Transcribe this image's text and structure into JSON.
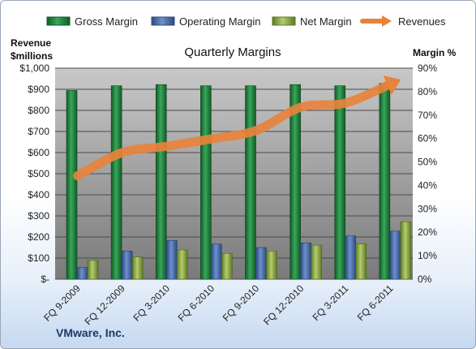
{
  "chart_data": {
    "type": "bar+line",
    "title": "Quarterly Margins",
    "company": "VMware, Inc.",
    "categories": [
      "FQ 9-2009",
      "FQ 12-2009",
      "FQ 3-2010",
      "FQ 6-2010",
      "FQ 9-2010",
      "FQ 12-2010",
      "FQ 3-2011",
      "FQ 6-2011"
    ],
    "left_axis": {
      "title_line1": "Revenue",
      "title_line2": "$millions",
      "range": [
        0,
        1000
      ],
      "ticks": [
        "$-",
        "$100",
        "$200",
        "$300",
        "$400",
        "$500",
        "$600",
        "$700",
        "$800",
        "$900",
        "$1,000"
      ]
    },
    "right_axis": {
      "title": "Margin %",
      "range": [
        0,
        90
      ],
      "ticks": [
        "0%",
        "10%",
        "20%",
        "30%",
        "40%",
        "50%",
        "60%",
        "70%",
        "80%",
        "90%"
      ]
    },
    "series": [
      {
        "name": "Gross Margin",
        "axis": "right",
        "color": "#1e7a3c",
        "values": [
          80.5,
          82.5,
          83,
          82.5,
          82.5,
          83,
          82.5,
          83.5
        ]
      },
      {
        "name": "Operating Margin",
        "axis": "right",
        "color": "#4a6fae",
        "values": [
          5,
          12,
          16.5,
          15,
          13.5,
          15.5,
          18.5,
          20.5
        ]
      },
      {
        "name": "Net Margin",
        "axis": "right",
        "color": "#8ea84a",
        "values": [
          8,
          9.5,
          12.5,
          11,
          12,
          14.5,
          15,
          24.5
        ]
      },
      {
        "name": "Revenues",
        "axis": "left",
        "color": "#e8823c",
        "values": [
          490,
          600,
          630,
          665,
          705,
          815,
          835,
          925
        ]
      }
    ],
    "grid": true,
    "legend_position": "top"
  }
}
